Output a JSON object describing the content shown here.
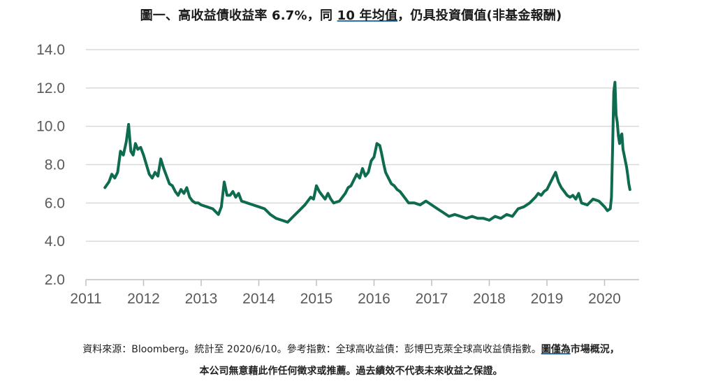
{
  "title": {
    "part1": "圖一、高收益債收益率 6.7%，同 ",
    "part2": "10 年均值",
    "part3": "，仍具投資價值(非基金報酬)"
  },
  "source": {
    "line1_plain": "資料來源：Bloomberg。統計至 2020/6/10。參考指數：全球高收益債：彭博巴克萊全球高收益債指數。",
    "line1_underlined": "圖僅為",
    "line1_bold": "市場概況，",
    "line2": "本公司無意藉此作任何徵求或推薦。過去績效不代表未來收益之保證。"
  },
  "colors": {
    "series": "#0f6b4f",
    "grid": "#d9d9d9",
    "tick": "#5a5a5a",
    "accent": "#2f6fb0"
  },
  "chart_data": {
    "type": "line",
    "title": "圖一、高收益債收益率 6.7%，同 10 年均值，仍具投資價值(非基金報酬)",
    "xlabel": "",
    "ylabel": "",
    "ylim": [
      2.0,
      14.0
    ],
    "xlim": [
      2011,
      2020.6
    ],
    "y_ticks": [
      "14.0",
      "12.0",
      "10.0",
      "8.0",
      "6.0",
      "4.0",
      "2.0"
    ],
    "x_ticks": [
      "2011",
      "2012",
      "2013",
      "2014",
      "2015",
      "2016",
      "2017",
      "2018",
      "2019",
      "2020"
    ],
    "grid": "horizontal",
    "legend": "none",
    "series": [
      {
        "x": [
          2011.33,
          2011.4,
          2011.45,
          2011.5,
          2011.55,
          2011.6,
          2011.65,
          2011.7,
          2011.74,
          2011.78,
          2011.82,
          2011.86,
          2011.9,
          2011.95,
          2012.0,
          2012.05,
          2012.1,
          2012.15,
          2012.2,
          2012.25,
          2012.3,
          2012.35,
          2012.4,
          2012.45,
          2012.5,
          2012.55,
          2012.6,
          2012.65,
          2012.7,
          2012.75,
          2012.8,
          2012.85,
          2012.9,
          2012.95,
          2013.0,
          2013.1,
          2013.2,
          2013.3,
          2013.35,
          2013.4,
          2013.45,
          2013.5,
          2013.55,
          2013.6,
          2013.65,
          2013.7,
          2013.8,
          2013.9,
          2014.0,
          2014.1,
          2014.2,
          2014.3,
          2014.4,
          2014.5,
          2014.6,
          2014.7,
          2014.8,
          2014.9,
          2014.95,
          2015.0,
          2015.05,
          2015.1,
          2015.15,
          2015.2,
          2015.25,
          2015.3,
          2015.4,
          2015.5,
          2015.55,
          2015.6,
          2015.65,
          2015.7,
          2015.75,
          2015.8,
          2015.85,
          2015.9,
          2015.95,
          2016.0,
          2016.05,
          2016.1,
          2016.13,
          2016.17,
          2016.2,
          2016.25,
          2016.3,
          2016.35,
          2016.4,
          2016.45,
          2016.5,
          2016.55,
          2016.6,
          2016.7,
          2016.8,
          2016.9,
          2017.0,
          2017.1,
          2017.2,
          2017.3,
          2017.4,
          2017.5,
          2017.6,
          2017.7,
          2017.8,
          2017.9,
          2018.0,
          2018.1,
          2018.2,
          2018.3,
          2018.4,
          2018.5,
          2018.6,
          2018.7,
          2018.8,
          2018.85,
          2018.9,
          2018.95,
          2019.0,
          2019.05,
          2019.1,
          2019.15,
          2019.2,
          2019.25,
          2019.3,
          2019.35,
          2019.4,
          2019.45,
          2019.5,
          2019.55,
          2019.6,
          2019.7,
          2019.8,
          2019.9,
          2020.0,
          2020.05,
          2020.1,
          2020.12,
          2020.14,
          2020.16,
          2020.18,
          2020.2,
          2020.22,
          2020.24,
          2020.26,
          2020.28,
          2020.3,
          2020.32,
          2020.34,
          2020.36,
          2020.38,
          2020.4,
          2020.42,
          2020.44
        ],
        "y": [
          6.8,
          7.1,
          7.5,
          7.3,
          7.6,
          8.7,
          8.5,
          9.2,
          10.1,
          8.7,
          8.5,
          9.1,
          8.8,
          8.9,
          8.5,
          8.0,
          7.5,
          7.3,
          7.6,
          7.4,
          8.3,
          7.8,
          7.4,
          7.0,
          6.9,
          6.6,
          6.4,
          6.7,
          6.5,
          6.8,
          6.3,
          6.1,
          6.0,
          6.0,
          5.9,
          5.8,
          5.7,
          5.4,
          5.8,
          7.1,
          6.4,
          6.4,
          6.6,
          6.3,
          6.5,
          6.1,
          6.0,
          5.9,
          5.8,
          5.7,
          5.4,
          5.2,
          5.1,
          5.0,
          5.3,
          5.6,
          5.9,
          6.3,
          6.2,
          6.9,
          6.6,
          6.4,
          6.2,
          6.5,
          6.2,
          6.0,
          6.1,
          6.5,
          6.8,
          6.9,
          7.2,
          7.5,
          7.3,
          7.8,
          7.4,
          7.6,
          8.2,
          8.4,
          9.1,
          9.0,
          8.6,
          8.0,
          7.6,
          7.3,
          7.0,
          6.9,
          6.7,
          6.6,
          6.4,
          6.2,
          6.0,
          6.0,
          5.9,
          6.1,
          5.9,
          5.7,
          5.5,
          5.3,
          5.4,
          5.3,
          5.2,
          5.3,
          5.2,
          5.2,
          5.1,
          5.3,
          5.2,
          5.4,
          5.3,
          5.7,
          5.8,
          6.0,
          6.3,
          6.5,
          6.4,
          6.6,
          6.7,
          7.0,
          7.3,
          7.6,
          7.1,
          6.8,
          6.6,
          6.4,
          6.3,
          6.4,
          6.2,
          6.5,
          6.0,
          5.9,
          6.2,
          6.1,
          5.8,
          5.6,
          5.7,
          6.3,
          9.0,
          11.8,
          12.3,
          10.6,
          10.2,
          9.5,
          9.1,
          9.5,
          9.6,
          8.8,
          8.5,
          8.2,
          7.9,
          7.5,
          7.0,
          6.7
        ]
      }
    ]
  }
}
